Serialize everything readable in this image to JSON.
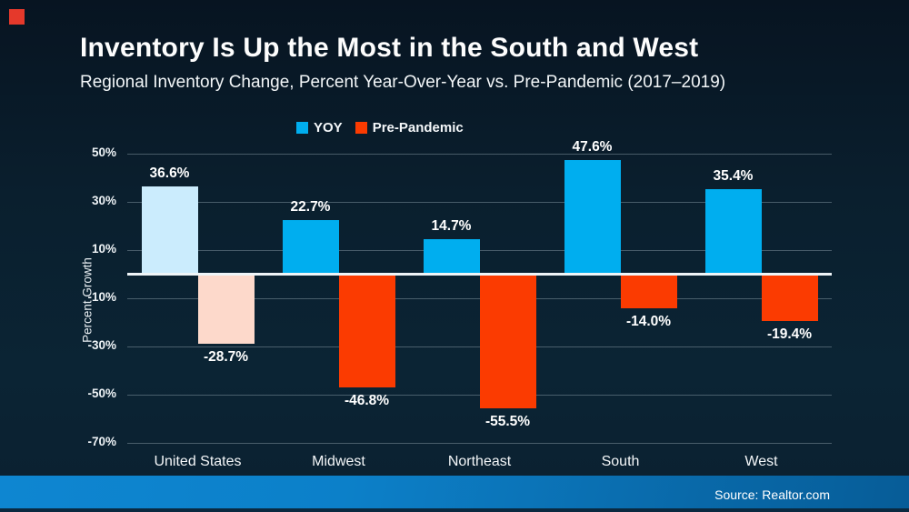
{
  "slide": {
    "title": "Inventory Is Up the Most in the South and West",
    "subtitle": "Regional Inventory Change, Percent Year-Over-Year vs. Pre-Pandemic (2017–2019)",
    "source_label": "Source: Realtor.com",
    "brand_accent_color": "#e5392b"
  },
  "chart_data": {
    "type": "bar",
    "title": "Inventory Is Up the Most in the South and West",
    "subtitle": "Regional Inventory Change, Percent Year-Over-Year vs. Pre-Pandemic (2017–2019)",
    "xlabel": "",
    "ylabel": "Percent Growth",
    "ylim": [
      -70,
      50
    ],
    "yticks": [
      50,
      30,
      10,
      -10,
      -30,
      -50,
      -70
    ],
    "ytick_labels": [
      "50%",
      "30%",
      "10%",
      "-10%",
      "-30%",
      "-50%",
      "-70%"
    ],
    "grid": true,
    "legend_position": "top",
    "categories": [
      "United States",
      "Midwest",
      "Northeast",
      "South",
      "West"
    ],
    "series": [
      {
        "name": "YOY",
        "color": "#00aeef",
        "values": [
          36.6,
          22.7,
          14.7,
          47.6,
          35.4
        ],
        "labels": [
          "36.6%",
          "22.7%",
          "14.7%",
          "47.6%",
          "35.4%"
        ],
        "point_colors": [
          "#cbecfd",
          "#00aeef",
          "#00aeef",
          "#00aeef",
          "#00aeef"
        ]
      },
      {
        "name": "Pre-Pandemic",
        "color": "#fb3b01",
        "values": [
          -28.7,
          -46.8,
          -55.5,
          -14.0,
          -19.4
        ],
        "labels": [
          "-28.7%",
          "-46.8%",
          "-55.5%",
          "-14.0%",
          "-19.4%"
        ],
        "point_colors": [
          "#fdd9cb",
          "#fb3b01",
          "#fb3b01",
          "#fb3b01",
          "#fb3b01"
        ]
      }
    ],
    "colors": {
      "gridline": "rgba(190,207,216,0.35)",
      "zero_line": "#eff5f8",
      "tick_text": "#eef3f6"
    }
  }
}
